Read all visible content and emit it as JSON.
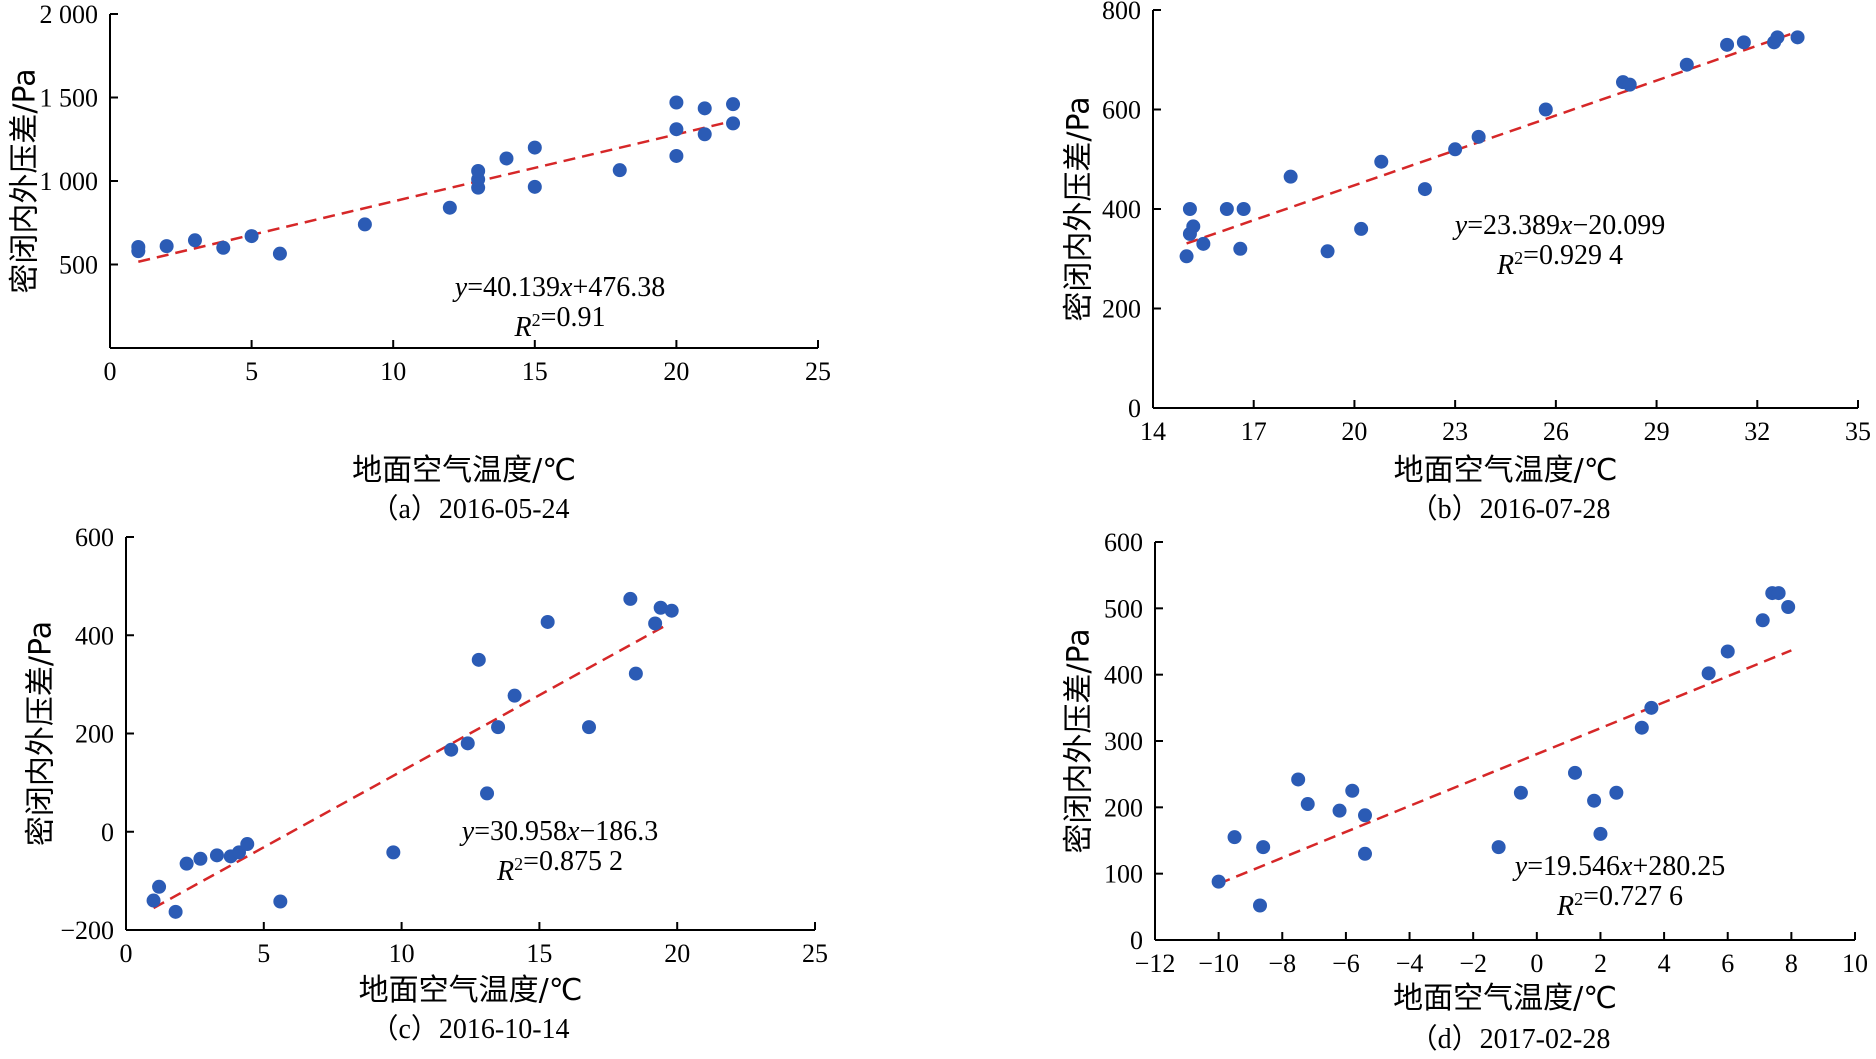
{
  "chart_data": [
    {
      "type": "scatter",
      "caption": "（a）2016-05-24",
      "xlabel": "地面空气温度/℃",
      "ylabel": "密闭内外压差/Pa",
      "xlim": [
        0,
        25
      ],
      "ylim": [
        0,
        2000
      ],
      "xticks": [
        0,
        5,
        10,
        15,
        20,
        25
      ],
      "yticks": [
        500,
        1000,
        1500,
        2000
      ],
      "xtick_labels": [
        "0",
        "5",
        "10",
        "15",
        "20",
        "25"
      ],
      "ytick_labels": [
        "500",
        "1 000",
        "1 500",
        "2 000"
      ],
      "equation": "y=40.139x+476.38",
      "r2": "R²=0.91",
      "fit": {
        "slope": 40.139,
        "intercept": 476.38,
        "x_range": [
          1,
          22
        ]
      },
      "x": [
        1,
        1,
        2,
        3,
        4,
        5,
        6,
        9,
        12,
        13,
        13,
        13,
        14,
        15,
        15,
        18,
        20,
        20,
        20,
        21,
        21,
        22,
        22
      ],
      "y": [
        580,
        605,
        610,
        645,
        600,
        670,
        565,
        740,
        840,
        960,
        1010,
        1060,
        1135,
        1200,
        965,
        1065,
        1150,
        1310,
        1470,
        1280,
        1435,
        1345,
        1460
      ]
    },
    {
      "type": "scatter",
      "caption": "（b）2016-07-28",
      "xlabel": "地面空气温度/℃",
      "ylabel": "密闭内外压差/Pa",
      "xlim": [
        14,
        35
      ],
      "ylim": [
        0,
        800
      ],
      "xticks": [
        14,
        17,
        20,
        23,
        26,
        29,
        32,
        35
      ],
      "yticks": [
        0,
        200,
        400,
        600,
        800
      ],
      "xtick_labels": [
        "14",
        "17",
        "20",
        "23",
        "26",
        "29",
        "32",
        "35"
      ],
      "ytick_labels": [
        "0",
        "200",
        "400",
        "600",
        "800"
      ],
      "equation": "y=23.389x−20.099",
      "r2": "R²=0.929 4",
      "fit": {
        "slope": 23.389,
        "intercept": -20.099,
        "x_range": [
          15,
          33.2
        ]
      },
      "x": [
        15.0,
        15.1,
        15.1,
        15.2,
        15.5,
        16.2,
        16.6,
        16.7,
        18.1,
        19.2,
        20.2,
        20.8,
        22.1,
        23.0,
        23.7,
        25.7,
        28.0,
        28.2,
        29.9,
        31.1,
        31.6,
        32.5,
        32.6,
        33.2
      ],
      "y": [
        305,
        350,
        400,
        365,
        330,
        400,
        320,
        400,
        465,
        315,
        360,
        495,
        440,
        520,
        545,
        600,
        655,
        650,
        690,
        730,
        735,
        735,
        745,
        745
      ]
    },
    {
      "type": "scatter",
      "caption": "（c）2016-10-14",
      "xlabel": "地面空气温度/℃",
      "ylabel": "密闭内外压差/Pa",
      "xlim": [
        0,
        25
      ],
      "ylim": [
        -200,
        600
      ],
      "xticks": [
        0,
        5,
        10,
        15,
        20,
        25
      ],
      "yticks": [
        -200,
        0,
        200,
        400,
        600
      ],
      "xtick_labels": [
        "0",
        "5",
        "10",
        "15",
        "20",
        "25"
      ],
      "ytick_labels": [
        "−200",
        "0",
        "200",
        "400",
        "600"
      ],
      "equation": "y=30.958x−186.3",
      "r2": "R²=0.875 2",
      "fit": {
        "slope": 30.958,
        "intercept": -186.3,
        "x_range": [
          1,
          19.6
        ]
      },
      "x": [
        1.0,
        1.2,
        1.8,
        2.2,
        2.7,
        3.3,
        3.8,
        4.1,
        4.4,
        5.6,
        9.7,
        11.8,
        12.4,
        12.8,
        13.1,
        13.5,
        14.1,
        15.3,
        16.8,
        18.3,
        18.5,
        19.2,
        19.4,
        19.8
      ],
      "y": [
        -140,
        -112,
        -163,
        -65,
        -55,
        -48,
        -50,
        -42,
        -25,
        -142,
        -42,
        167,
        180,
        350,
        78,
        213,
        277,
        427,
        213,
        474,
        322,
        424,
        456,
        450
      ]
    },
    {
      "type": "scatter",
      "caption": "（d）2017-02-28",
      "xlabel": "地面空气温度/℃",
      "ylabel": "密闭内外压差/Pa",
      "xlim": [
        -12,
        10
      ],
      "ylim": [
        0,
        600
      ],
      "xticks": [
        -12,
        -10,
        -8,
        -6,
        -4,
        -2,
        0,
        2,
        4,
        6,
        8,
        10
      ],
      "yticks": [
        0,
        100,
        200,
        300,
        400,
        500,
        600
      ],
      "xtick_labels": [
        "−12",
        "−10",
        "−8",
        "−6",
        "−4",
        "−2",
        "0",
        "2",
        "4",
        "6",
        "8",
        "10"
      ],
      "ytick_labels": [
        "0",
        "100",
        "200",
        "300",
        "400",
        "500",
        "600"
      ],
      "equation": "y=19.546x+280.25",
      "r2": "R²=0.727 6",
      "fit": {
        "slope": 19.546,
        "intercept": 280.25,
        "x_range": [
          -10,
          8
        ]
      },
      "x": [
        -10.0,
        -9.5,
        -8.7,
        -8.6,
        -7.5,
        -7.2,
        -6.2,
        -5.8,
        -5.4,
        -5.4,
        -1.2,
        -0.5,
        1.2,
        1.8,
        2.0,
        2.5,
        3.3,
        3.6,
        5.4,
        6.0,
        7.1,
        7.4,
        7.6,
        7.9
      ],
      "y": [
        88,
        155,
        52,
        140,
        242,
        205,
        195,
        225,
        188,
        130,
        140,
        222,
        252,
        210,
        160,
        222,
        320,
        350,
        402,
        435,
        482,
        523,
        523,
        502
      ]
    }
  ]
}
